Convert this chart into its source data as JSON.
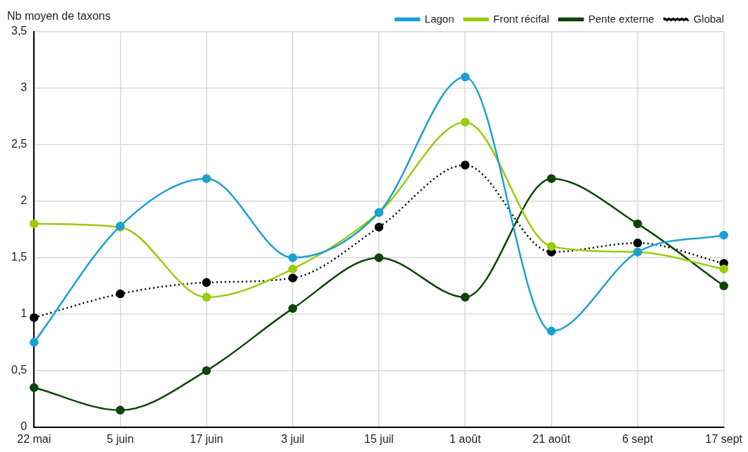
{
  "chart_data": {
    "type": "line",
    "ylabel": "Nb moyen de taxons",
    "categories": [
      "22 mai",
      "5 juin",
      "17 juin",
      "3 juil",
      "15 juil",
      "1 août",
      "21 août",
      "6 sept",
      "17 sept"
    ],
    "series": [
      {
        "name": "Lagon",
        "color": "#1ba1d1",
        "values": [
          0.75,
          1.78,
          2.2,
          1.5,
          1.9,
          3.1,
          0.85,
          1.55,
          1.7
        ]
      },
      {
        "name": "Front récifal",
        "color": "#99cc0a",
        "values": [
          1.8,
          1.77,
          1.15,
          1.4,
          1.9,
          2.7,
          1.6,
          1.55,
          1.4
        ]
      },
      {
        "name": "Pente externe",
        "color": "#0e4508",
        "values": [
          0.35,
          0.15,
          0.5,
          1.05,
          1.5,
          1.15,
          2.2,
          1.8,
          1.25
        ]
      },
      {
        "name": "Global",
        "color": "#000000",
        "line_style": "dotted",
        "values": [
          0.97,
          1.18,
          1.28,
          1.32,
          1.77,
          2.32,
          1.55,
          1.63,
          1.45
        ]
      }
    ],
    "ylim": [
      0,
      3.5
    ],
    "yticks": [
      0,
      {
        "value": 0.5,
        "label": "0,5"
      },
      1,
      {
        "value": 1.5,
        "label": "1,5"
      },
      2,
      {
        "value": 2.5,
        "label": "2,5"
      },
      3,
      {
        "value": 3.5,
        "label": "3,5"
      }
    ],
    "grid": true,
    "legend": "top right",
    "marker": "circle",
    "line_style": "solid"
  }
}
